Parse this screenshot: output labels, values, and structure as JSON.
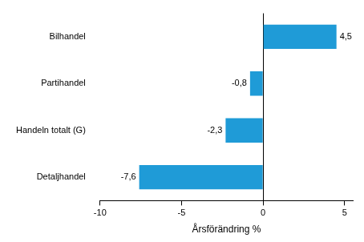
{
  "chart_data": {
    "type": "bar",
    "orientation": "horizontal",
    "categories": [
      "Bilhandel",
      "Partihandel",
      "Handeln totalt (G)",
      "Detaljhandel"
    ],
    "values": [
      4.5,
      -0.8,
      -2.3,
      -7.6
    ],
    "value_labels": [
      "4,5",
      "-0,8",
      "-2,3",
      "-7,6"
    ],
    "data_labels": true,
    "color": "#1f9bd7",
    "x_label": "Årsförändring %",
    "xlim": [
      -10,
      5.5
    ],
    "xticks": [
      -10,
      -5,
      0,
      5
    ],
    "grid": false
  }
}
